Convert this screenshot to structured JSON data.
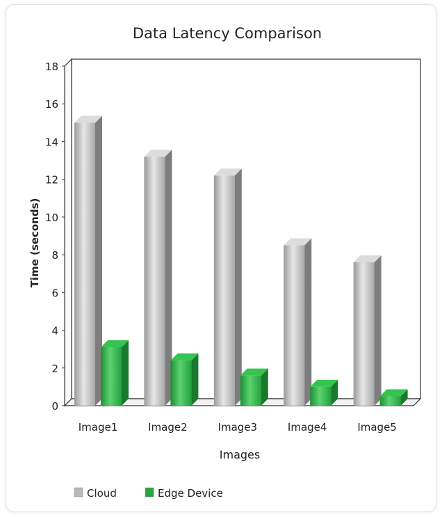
{
  "chart_data": {
    "type": "bar",
    "title": "Data Latency Comparison",
    "xlabel": "Images",
    "ylabel": "Time (seconds)",
    "categories": [
      "Image1",
      "Image2",
      "Image3",
      "Image4",
      "Image5"
    ],
    "series": [
      {
        "name": "Cloud",
        "values": [
          15.0,
          13.2,
          12.2,
          8.5,
          7.6
        ],
        "color": "#c4c4c4"
      },
      {
        "name": "Edge Device",
        "values": [
          3.1,
          2.4,
          1.6,
          1.0,
          0.5
        ],
        "color": "#2db34a"
      }
    ],
    "ylim": [
      0,
      18
    ],
    "yticks": [
      0,
      2,
      4,
      6,
      8,
      10,
      12,
      14,
      16,
      18
    ],
    "grid": false,
    "legend_position": "bottom-left",
    "style": "3d"
  }
}
